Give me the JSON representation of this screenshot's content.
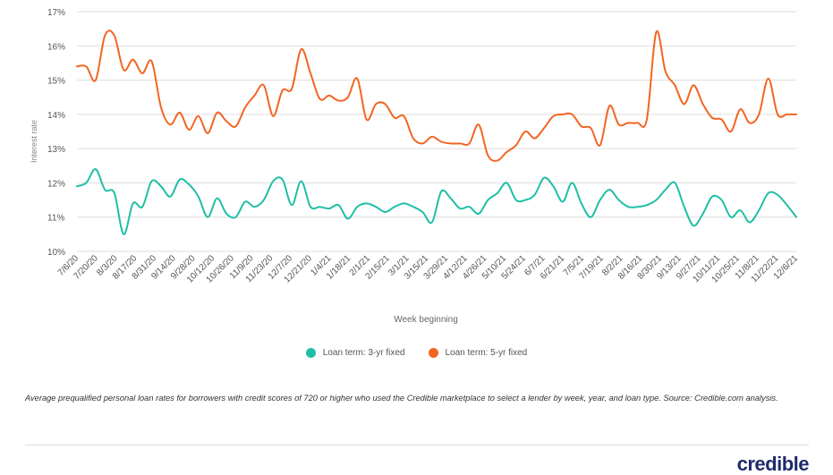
{
  "chart_data": {
    "type": "line",
    "title": "",
    "xlabel": "Week beginning",
    "ylabel": "Interest rate",
    "ylim": [
      10,
      17
    ],
    "yticks": [
      "10%",
      "11%",
      "12%",
      "13%",
      "14%",
      "15%",
      "16%",
      "17%"
    ],
    "x_tick_labels": [
      "7/6/20",
      "7/20/20",
      "8/3/20",
      "8/17/20",
      "8/31/20",
      "9/14/20",
      "9/28/20",
      "10/12/20",
      "10/26/20",
      "11/9/20",
      "11/23/20",
      "12/7/20",
      "12/21/20",
      "1/4/21",
      "1/18/21",
      "2/1/21",
      "2/15/21",
      "3/1/21",
      "3/15/21",
      "3/29/21",
      "4/12/21",
      "4/26/21",
      "5/10/21",
      "5/24/21",
      "6/7/21",
      "6/21/21",
      "7/5/21",
      "7/19/21",
      "8/2/21",
      "8/16/21",
      "8/30/21",
      "9/13/21",
      "9/27/21",
      "10/11/21",
      "10/25/21",
      "11/8/21",
      "11/22/21",
      "12/6/21"
    ],
    "series": [
      {
        "name": "Loan term: 3-yr fixed",
        "color": "#1fbfa5",
        "values": [
          11.9,
          12.0,
          12.4,
          11.8,
          11.7,
          10.5,
          11.4,
          11.3,
          12.05,
          11.9,
          11.6,
          12.1,
          11.95,
          11.6,
          11.0,
          11.55,
          11.1,
          11.0,
          11.45,
          11.3,
          11.5,
          12.05,
          12.1,
          11.35,
          12.05,
          11.3,
          11.3,
          11.25,
          11.35,
          10.95,
          11.3,
          11.4,
          11.3,
          11.15,
          11.3,
          11.4,
          11.3,
          11.15,
          10.85,
          11.75,
          11.55,
          11.25,
          11.3,
          11.1,
          11.5,
          11.7,
          12.0,
          11.5,
          11.5,
          11.65,
          12.15,
          11.9,
          11.45,
          12.0,
          11.4,
          11.0,
          11.5,
          11.8,
          11.5,
          11.3,
          11.3,
          11.35,
          11.5,
          11.8,
          12.0,
          11.3,
          10.75,
          11.1,
          11.6,
          11.5,
          11.0,
          11.2,
          10.85,
          11.2,
          11.7,
          11.65,
          11.35,
          11.0
        ]
      },
      {
        "name": "Loan term: 5-yr fixed",
        "color": "#f26522",
        "values": [
          15.4,
          15.4,
          15.0,
          16.3,
          16.3,
          15.3,
          15.6,
          15.2,
          15.55,
          14.2,
          13.7,
          14.05,
          13.55,
          13.95,
          13.45,
          14.05,
          13.8,
          13.65,
          14.2,
          14.55,
          14.85,
          13.95,
          14.7,
          14.75,
          15.9,
          15.2,
          14.45,
          14.55,
          14.4,
          14.5,
          15.05,
          13.85,
          14.3,
          14.3,
          13.9,
          13.95,
          13.3,
          13.15,
          13.35,
          13.2,
          13.15,
          13.15,
          13.15,
          13.7,
          12.8,
          12.65,
          12.9,
          13.1,
          13.5,
          13.3,
          13.6,
          13.95,
          14.0,
          14.0,
          13.65,
          13.6,
          13.1,
          14.25,
          13.7,
          13.75,
          13.75,
          13.85,
          16.4,
          15.25,
          14.85,
          14.3,
          14.85,
          14.3,
          13.9,
          13.85,
          13.5,
          14.15,
          13.75,
          14.0,
          15.05,
          14.0,
          14.0,
          14.0
        ]
      }
    ]
  },
  "legend": {
    "items": [
      {
        "label": "Loan term: 3-yr fixed",
        "color": "#1fbfa5"
      },
      {
        "label": "Loan term: 5-yr fixed",
        "color": "#f26522"
      }
    ]
  },
  "caption": "Average prequalified personal loan rates for borrowers with credit scores of 720 or higher who used the Credible marketplace to select a lender by week, year, and loan type. Source: Credible.com analysis.",
  "brand": {
    "name": "credible"
  }
}
